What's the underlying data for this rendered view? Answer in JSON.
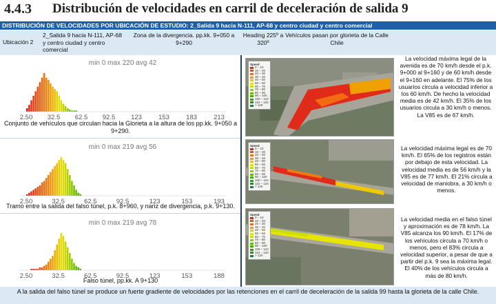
{
  "header": {
    "section_number": "4.4.3",
    "title": "Distribución de velocidades en carril de deceleración de salida 9"
  },
  "banner": "DISTRIBUCIÓN DE VELOCIDADES POR UBICACIÓN DE ESTUDIO: 2_Salida 9 hacia N-111, AP-68 y centro ciudad y centro comercial",
  "info": {
    "ubicacion": "Ubicación 2",
    "name": "2_Salida 9 hacia N-111, AP-68 y centro ciudad y centro comercial",
    "zone": "Zona de la divergencia. pp.kk. 9+050 a 9+290",
    "heading": "Heading 225º a 320º",
    "vehicles": "Vehículos pasan por glorieta de la Calle Chile"
  },
  "panels": [
    {
      "stats": "min 0 max 220 avg 42",
      "caption": "Conjunto de vehículos que circulan hacia la Glorieta a la altura de los pp.kk. 9+050 a 9+290.",
      "note": "La velocidad máxima legal de la avenida es de 70 km/h desde el p.k. 9+000 al 9+160 y de 60 km/h desde el 9+160 en adelante. El 75% de los usuarios circula a velocidad inferior a los 60 km/h. De hecho la velocidad media es de 42 km/h. El 35% de los usuarios circula a 30 km/h o menos. La V85 es de 67 km/h.",
      "ticks": [
        "2.50",
        "32.5",
        "62.5",
        "92.5",
        "123",
        "153",
        "183",
        "213"
      ]
    },
    {
      "stats": "min 0 max 219 avg 56",
      "caption": "Tramo entre la salida del falso túnel, p.k. 8+960, y nariz de divergencia, p.k. 9+130.",
      "note": "La velocidad máxima legal es de 70 km/h. El 65% de los registros están por debajo de esta velocidad. La velocidad media es de 56 km/h y la V85 es de 77 km/h. El 21% circula a velocidad de maniobra, a 30 km/h o menos.",
      "ticks": [
        "2.50",
        "32.5",
        "62.5",
        "92.5",
        "123",
        "153",
        "193"
      ]
    },
    {
      "stats": "min 0 max 219 avg 78",
      "caption": "Falso túnel, pp.kk. A 9+130",
      "note": "La velocidad media en el falso túnel y aproximación es de 78 km/h. La V85 alcanza los 90 km/h. El 17% de los vehículos circula a 70 km/h o menos, pero el 83% circula a velocidad superior, a pesar de que a partir del p.k. 9 sea la máxima legal. El 40% de los vehículos circula a más de 80 km/h.",
      "ticks": [
        "2.50",
        "32.5",
        "62.5",
        "92.5",
        "123",
        "153",
        "188"
      ]
    }
  ],
  "legend": {
    "title": "Speed",
    "subtitle": "Rojo 22 con filtro",
    "items": [
      "0 – 10",
      "10 – 20",
      "20 – 30",
      "30 – 40",
      "40 – 50",
      "50 – 60",
      "60 – 70",
      "70 – 80",
      "80 – 90",
      "90 – 100",
      "100 – 110",
      "110 – 120",
      "> 120"
    ],
    "no_value": "No value"
  },
  "footer": "A la salida del falso túnel se produce un fuerte gradiente de velocidades por las retenciones en el carril de deceleración de la salida 99 hasta la glorieta de la calle Chile.",
  "colors": {
    "banner": "#1f5fa8",
    "row_bg": "#dce8f4",
    "red": "#e02020",
    "orange": "#f08a10",
    "yellow": "#e8e000",
    "green": "#38b000"
  }
}
